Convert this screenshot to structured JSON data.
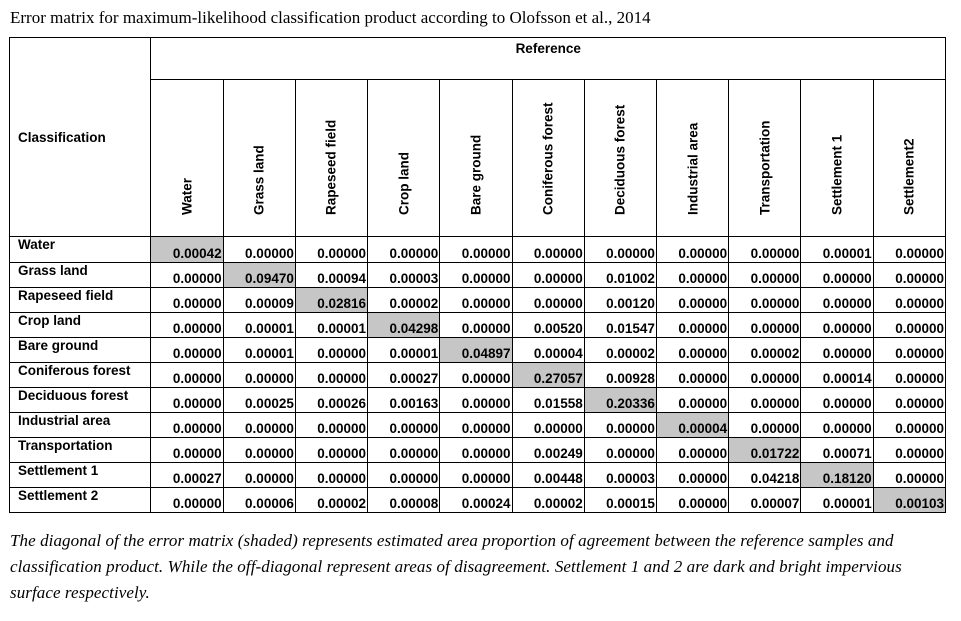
{
  "title": "Error matrix for maximum-likelihood classification product according to Olofsson et al., 2014",
  "table": {
    "corner_label": "Classification",
    "reference_label": "Reference",
    "columns": [
      "Water",
      "Grass land",
      "Rapeseed field",
      "Crop land",
      "Bare ground",
      "Coniferous forest",
      "Deciduous forest",
      "Industrial area",
      "Transportation",
      "Settlement 1",
      "Settlement2"
    ],
    "rows": [
      {
        "label": "Water",
        "values": [
          "0.00042",
          "0.00000",
          "0.00000",
          "0.00000",
          "0.00000",
          "0.00000",
          "0.00000",
          "0.00000",
          "0.00000",
          "0.00001",
          "0.00000"
        ]
      },
      {
        "label": "Grass land",
        "values": [
          "0.00000",
          "0.09470",
          "0.00094",
          "0.00003",
          "0.00000",
          "0.00000",
          "0.01002",
          "0.00000",
          "0.00000",
          "0.00000",
          "0.00000"
        ]
      },
      {
        "label": "Rapeseed field",
        "values": [
          "0.00000",
          "0.00009",
          "0.02816",
          "0.00002",
          "0.00000",
          "0.00000",
          "0.00120",
          "0.00000",
          "0.00000",
          "0.00000",
          "0.00000"
        ]
      },
      {
        "label": "Crop land",
        "values": [
          "0.00000",
          "0.00001",
          "0.00001",
          "0.04298",
          "0.00000",
          "0.00520",
          "0.01547",
          "0.00000",
          "0.00000",
          "0.00000",
          "0.00000"
        ]
      },
      {
        "label": "Bare ground",
        "values": [
          "0.00000",
          "0.00001",
          "0.00000",
          "0.00001",
          "0.04897",
          "0.00004",
          "0.00002",
          "0.00000",
          "0.00002",
          "0.00000",
          "0.00000"
        ]
      },
      {
        "label": "Coniferous  forest",
        "values": [
          "0.00000",
          "0.00000",
          "0.00000",
          "0.00027",
          "0.00000",
          "0.27057",
          "0.00928",
          "0.00000",
          "0.00000",
          "0.00014",
          "0.00000"
        ]
      },
      {
        "label": "Deciduous forest",
        "values": [
          "0.00000",
          "0.00025",
          "0.00026",
          "0.00163",
          "0.00000",
          "0.01558",
          "0.20336",
          "0.00000",
          "0.00000",
          "0.00000",
          "0.00000"
        ]
      },
      {
        "label": "Industrial area",
        "values": [
          "0.00000",
          "0.00000",
          "0.00000",
          "0.00000",
          "0.00000",
          "0.00000",
          "0.00000",
          "0.00004",
          "0.00000",
          "0.00000",
          "0.00000"
        ]
      },
      {
        "label": "Transportation",
        "values": [
          "0.00000",
          "0.00000",
          "0.00000",
          "0.00000",
          "0.00000",
          "0.00249",
          "0.00000",
          "0.00000",
          "0.01722",
          "0.00071",
          "0.00000"
        ]
      },
      {
        "label": "Settlement 1",
        "values": [
          "0.00027",
          "0.00000",
          "0.00000",
          "0.00000",
          "0.00000",
          "0.00448",
          "0.00003",
          "0.00000",
          "0.04218",
          "0.18120",
          "0.00000"
        ]
      },
      {
        "label": "Settlement 2",
        "values": [
          "0.00000",
          "0.00006",
          "0.00002",
          "0.00008",
          "0.00024",
          "0.00002",
          "0.00015",
          "0.00000",
          "0.00007",
          "0.00001",
          "0.00103"
        ]
      }
    ],
    "diagonal_shade": "#c6c6c6"
  },
  "caption": "The diagonal of the error matrix (shaded) represents estimated area proportion of agreement between the reference samples and classification product. While the off-diagonal represent areas of disagreement. Settlement 1 and 2 are dark and bright impervious surface respectively."
}
